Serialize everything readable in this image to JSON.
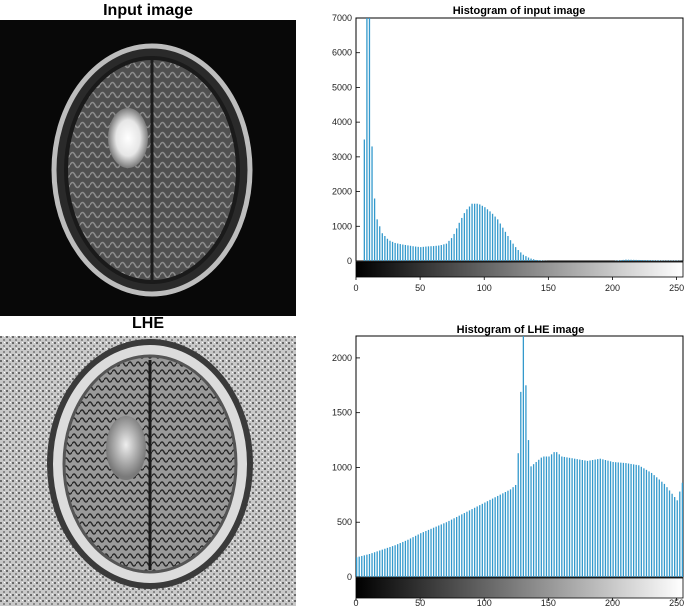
{
  "panels": {
    "input_title": "Input image",
    "lhe_title": "LHE"
  },
  "colors": {
    "bar": "#3399cc",
    "bar_outline": "#33a0a0",
    "axis": "#000000"
  },
  "chart_data": [
    {
      "type": "bar",
      "title": "Histogram of input image",
      "xlabel": "",
      "ylabel": "",
      "xlim": [
        0,
        255
      ],
      "ylim": [
        0,
        7000
      ],
      "x_ticks": [
        0,
        50,
        100,
        150,
        200,
        250
      ],
      "y_ticks": [
        0,
        1000,
        2000,
        3000,
        4000,
        5000,
        6000,
        7000
      ],
      "grid": false,
      "colorbar": "grayscale",
      "x": [
        0,
        4,
        8,
        10,
        12,
        14,
        16,
        20,
        25,
        30,
        35,
        40,
        45,
        50,
        55,
        60,
        65,
        70,
        75,
        80,
        85,
        90,
        95,
        100,
        105,
        110,
        115,
        120,
        125,
        130,
        135,
        140,
        145,
        150,
        160,
        170,
        180,
        190,
        200,
        210,
        220,
        230,
        240,
        250,
        255
      ],
      "values": [
        0,
        0,
        7000,
        7000,
        3300,
        1800,
        1200,
        800,
        600,
        520,
        480,
        450,
        420,
        400,
        420,
        430,
        450,
        500,
        700,
        1100,
        1450,
        1650,
        1650,
        1550,
        1400,
        1200,
        900,
        600,
        350,
        180,
        80,
        30,
        10,
        0,
        0,
        0,
        0,
        0,
        0,
        40,
        30,
        20,
        10,
        10,
        0
      ]
    },
    {
      "type": "bar",
      "title": "Histogram of LHE image",
      "xlabel": "",
      "ylabel": "",
      "xlim": [
        0,
        255
      ],
      "ylim": [
        0,
        2200
      ],
      "x_ticks": [
        0,
        50,
        100,
        150,
        200,
        250
      ],
      "y_ticks": [
        0,
        500,
        1000,
        1500,
        2000
      ],
      "grid": false,
      "colorbar": "grayscale",
      "x": [
        0,
        10,
        20,
        30,
        40,
        50,
        60,
        70,
        80,
        90,
        100,
        110,
        120,
        125,
        130,
        135,
        140,
        145,
        150,
        155,
        160,
        170,
        180,
        190,
        200,
        210,
        220,
        230,
        240,
        250,
        255
      ],
      "values": [
        180,
        210,
        250,
        290,
        340,
        400,
        450,
        500,
        560,
        620,
        680,
        740,
        800,
        850,
        2250,
        1000,
        1050,
        1100,
        1100,
        1150,
        1100,
        1080,
        1060,
        1080,
        1050,
        1040,
        1020,
        950,
        850,
        700,
        900
      ]
    }
  ]
}
